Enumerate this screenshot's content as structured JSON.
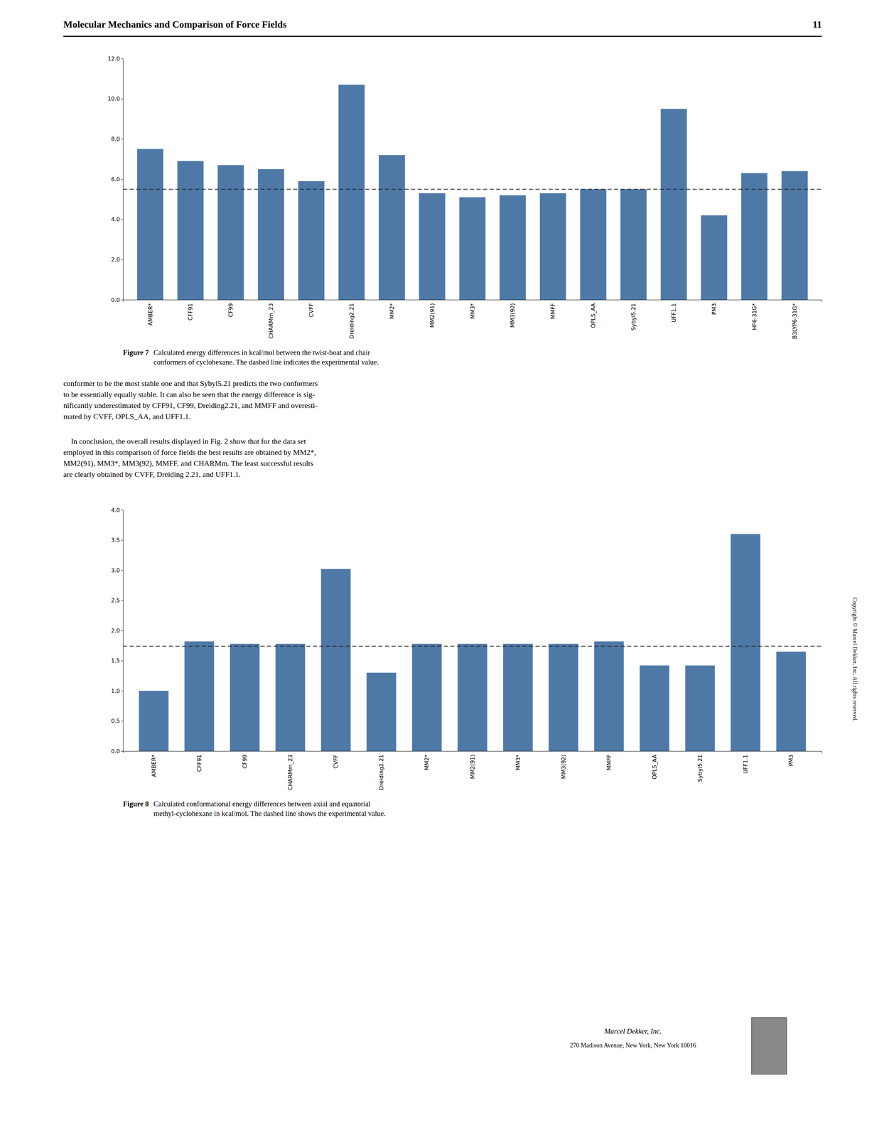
{
  "page_title": "Molecular Mechanics and Comparison of Force Fields",
  "page_number": "11",
  "paragraphs": [
    "conformer to be the most stable one and that Sybyl5.21 predicts the two conformers\nto be essentially equally stable. It can also be seen that the energy difference is sig-\nnificantly underestimated by CFF91, CF99, Dreiding2.21, and MMFF and overesti-\nmated by CVFF, OPLS_AA, and UFF1.1.",
    "    In conclusion, the overall results displayed in Fig. 2 show that for the data set\nemployed in this comparison of force fields the best results are obtained by MM2*,\nMM2(91), MM3*, MM3(92), MMFF, and CHARMm. The least successful results\nare clearly obtained by CVFF, Dreiding 2.21, and UFF1.1."
  ],
  "publisher": [
    "Marcel Dekker, Inc.",
    "270 Madison Avenue, New York, New York 10016"
  ],
  "copyright": "Copyright © Marcel Dekker, Inc. All rights reserved.",
  "chart_data": [
    {
      "type": "bar",
      "title": "Figure 7",
      "caption": "Calculated energy differences in kcal/mol between the twist-boat and chair\nconformers of cyclohexane. The dashed line indicates the experimental value.",
      "categories": [
        "AMBER*",
        "CFF91",
        "CF99",
        "CHARMm_23",
        "CVFF",
        "Dreiding2.21",
        "MM2*",
        "MM2(91)",
        "MM3*",
        "MM3(92)",
        "MMFF",
        "OPLS_AA",
        "Sybyl5.21",
        "UFF1.1",
        "PM3",
        "HF6-31G*",
        "B3LYP6-31G*"
      ],
      "values": [
        7.5,
        6.9,
        6.7,
        6.5,
        5.9,
        10.7,
        7.2,
        5.3,
        5.1,
        5.2,
        5.3,
        5.5,
        5.5,
        9.5,
        4.2,
        6.3,
        6.4
      ],
      "experimental": 5.5,
      "ylim": [
        0.0,
        12.0
      ],
      "yticks": [
        {
          "value": 0.0,
          "label": "0.0"
        },
        {
          "value": 2.0,
          "label": "2.0"
        },
        {
          "value": 4.0,
          "label": "4.0"
        },
        {
          "value": 6.0,
          "label": "6.0"
        },
        {
          "value": 8.0,
          "label": "8.0"
        },
        {
          "value": 10.0,
          "label": "10.0"
        },
        {
          "value": 12.0,
          "label": "12.0"
        }
      ],
      "grid": false
    },
    {
      "type": "bar",
      "title": "Figure 8",
      "caption": "Calculated conformational energy differences between axial and equatorial\nmethyl-cyclohexane in kcal/mol. The dashed line shows the experimental value.",
      "categories": [
        "AMBER*",
        "CFF91",
        "CF99",
        "CHARMm_23",
        "CVFF",
        "Dreiding2.21",
        "MM2*",
        "MM2(91)",
        "MM3*",
        "MM3(92)",
        "MMFF",
        "OPLS_AA",
        "Sybyl5.21",
        "UFF1.1",
        "PM3"
      ],
      "values": [
        1.0,
        1.82,
        1.78,
        1.78,
        3.02,
        1.3,
        1.78,
        1.78,
        1.78,
        1.78,
        1.82,
        1.42,
        1.42,
        3.6,
        1.65
      ],
      "experimental": 1.74,
      "ylim": [
        0.0,
        4.0
      ],
      "yticks": [
        {
          "value": 0.0,
          "label": "0.0"
        },
        {
          "value": 0.5,
          "label": "0.5"
        },
        {
          "value": 1.0,
          "label": "1.0"
        },
        {
          "value": 1.5,
          "label": "1.5"
        },
        {
          "value": 2.0,
          "label": "2.0"
        },
        {
          "value": 2.5,
          "label": "2.5"
        },
        {
          "value": 3.0,
          "label": "3.0"
        },
        {
          "value": 3.5,
          "label": "3.5"
        },
        {
          "value": 4.0,
          "label": "4.0"
        }
      ],
      "grid": false
    }
  ]
}
